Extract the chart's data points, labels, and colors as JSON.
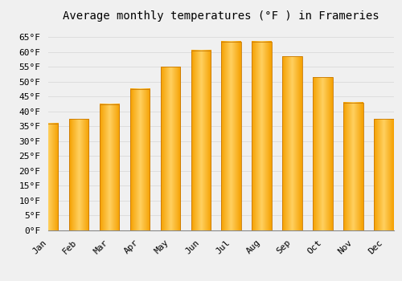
{
  "title": "Average monthly temperatures (°F ) in Frameries",
  "months": [
    "Jan",
    "Feb",
    "Mar",
    "Apr",
    "May",
    "Jun",
    "Jul",
    "Aug",
    "Sep",
    "Oct",
    "Nov",
    "Dec"
  ],
  "values": [
    36,
    37.5,
    42.5,
    47.5,
    55,
    60.5,
    63.5,
    63.5,
    58.5,
    51.5,
    43,
    37.5
  ],
  "bar_color_center": "#FFD060",
  "bar_color_edge": "#F5A000",
  "background_color": "#F0F0F0",
  "grid_color": "#DDDDDD",
  "ylim": [
    0,
    68
  ],
  "yticks": [
    0,
    5,
    10,
    15,
    20,
    25,
    30,
    35,
    40,
    45,
    50,
    55,
    60,
    65
  ],
  "ylabel_suffix": "°F",
  "title_fontsize": 10,
  "tick_fontsize": 8,
  "font_family": "monospace"
}
